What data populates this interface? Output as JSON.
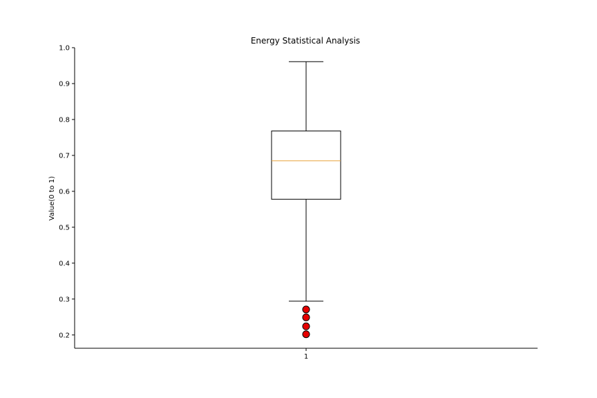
{
  "chart_data": {
    "type": "box",
    "title": "Energy Statistical Analysis",
    "xlabel": "",
    "ylabel": "Value(0 to 1)",
    "ylim": [
      0.163,
      1.0
    ],
    "yticks": [
      0.2,
      0.3,
      0.4,
      0.5,
      0.6,
      0.7,
      0.8,
      0.9,
      1.0
    ],
    "yticklabels": [
      "0.2",
      "0.3",
      "0.4",
      "0.5",
      "0.6",
      "0.7",
      "0.8",
      "0.9",
      "1.0"
    ],
    "categories": [
      "1"
    ],
    "boxes": [
      {
        "category": "1",
        "whisker_low": 0.294,
        "q1": 0.578,
        "median": 0.685,
        "q3": 0.768,
        "whisker_high": 0.961,
        "outliers": [
          0.271,
          0.249,
          0.224,
          0.202
        ]
      }
    ],
    "grid": false,
    "colors": {
      "box": "#000000",
      "median": "#e8a33d",
      "outlier_fill": "#e60000",
      "outlier_edge": "#000000"
    }
  }
}
